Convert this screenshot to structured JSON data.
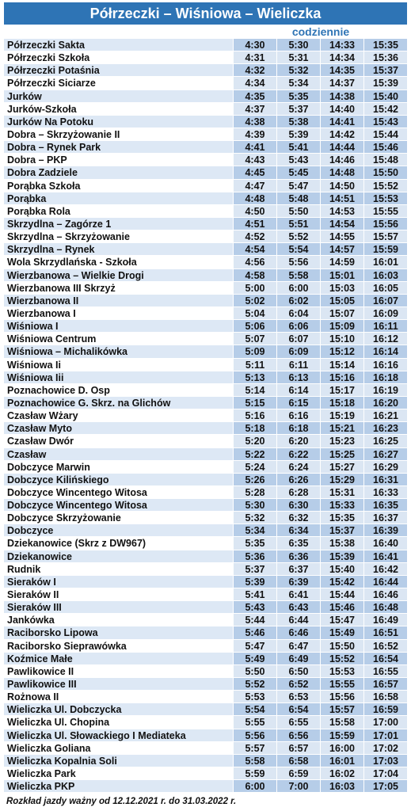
{
  "header": {
    "title": "Półrzeczki – Wiśniowa – Wieliczka",
    "subheader": "codziennie"
  },
  "table": {
    "rows": [
      [
        "Półrzeczki Sakta",
        "4:30",
        "5:30",
        "14:33",
        "15:35"
      ],
      [
        "Półrzeczki Szkoła",
        "4:31",
        "5:31",
        "14:34",
        "15:36"
      ],
      [
        "Półrzeczki Potaśnia",
        "4:32",
        "5:32",
        "14:35",
        "15:37"
      ],
      [
        "Półrzeczki Siciarze",
        "4:34",
        "5:34",
        "14:37",
        "15:39"
      ],
      [
        "Jurków",
        "4:35",
        "5:35",
        "14:38",
        "15:40"
      ],
      [
        "Jurków-Szkoła",
        "4:37",
        "5:37",
        "14:40",
        "15:42"
      ],
      [
        "Jurków Na Potoku",
        "4:38",
        "5:38",
        "14:41",
        "15:43"
      ],
      [
        "Dobra – Skrzyżowanie II",
        "4:39",
        "5:39",
        "14:42",
        "15:44"
      ],
      [
        "Dobra – Rynek Park",
        "4:41",
        "5:41",
        "14:44",
        "15:46"
      ],
      [
        "Dobra – PKP",
        "4:43",
        "5:43",
        "14:46",
        "15:48"
      ],
      [
        "Dobra Zadziele",
        "4:45",
        "5:45",
        "14:48",
        "15:50"
      ],
      [
        "Porąbka Szkoła",
        "4:47",
        "5:47",
        "14:50",
        "15:52"
      ],
      [
        "Porąbka",
        "4:48",
        "5:48",
        "14:51",
        "15:53"
      ],
      [
        "Porąbka Rola",
        "4:50",
        "5:50",
        "14:53",
        "15:55"
      ],
      [
        "Skrzydlna – Zagórze 1",
        "4:51",
        "5:51",
        "14:54",
        "15:56"
      ],
      [
        "Skrzydlna – Skrzyżowanie",
        "4:52",
        "5:52",
        "14:55",
        "15:57"
      ],
      [
        "Skrzydlna – Rynek",
        "4:54",
        "5:54",
        "14:57",
        "15:59"
      ],
      [
        "Wola Skrzydlańska - Szkoła",
        "4:56",
        "5:56",
        "14:59",
        "16:01"
      ],
      [
        "Wierzbanowa – Wielkie Drogi",
        "4:58",
        "5:58",
        "15:01",
        "16:03"
      ],
      [
        "Wierzbanowa III Skrzyż",
        "5:00",
        "6:00",
        "15:03",
        "16:05"
      ],
      [
        "Wierzbanowa II",
        "5:02",
        "6:02",
        "15:05",
        "16:07"
      ],
      [
        "Wierzbanowa I",
        "5:04",
        "6:04",
        "15:07",
        "16:09"
      ],
      [
        "Wiśniowa I",
        "5:06",
        "6:06",
        "15:09",
        "16:11"
      ],
      [
        "Wiśniowa Centrum",
        "5:07",
        "6:07",
        "15:10",
        "16:12"
      ],
      [
        "Wiśniowa – Michalikówka",
        "5:09",
        "6:09",
        "15:12",
        "16:14"
      ],
      [
        "Wiśniowa Ii",
        "5:11",
        "6:11",
        "15:14",
        "16:16"
      ],
      [
        "Wiśniowa Iii",
        "5:13",
        "6:13",
        "15:16",
        "16:18"
      ],
      [
        "Poznachowice D. Osp",
        "5:14",
        "6:14",
        "15:17",
        "16:19"
      ],
      [
        "Poznachowice G. Skrz. na Glichów",
        "5:15",
        "6:15",
        "15:18",
        "16:20"
      ],
      [
        "Czasław Wżary",
        "5:16",
        "6:16",
        "15:19",
        "16:21"
      ],
      [
        "Czasław Myto",
        "5:18",
        "6:18",
        "15:21",
        "16:23"
      ],
      [
        "Czasław Dwór",
        "5:20",
        "6:20",
        "15:23",
        "16:25"
      ],
      [
        "Czasław",
        "5:22",
        "6:22",
        "15:25",
        "16:27"
      ],
      [
        "Dobczyce Marwin",
        "5:24",
        "6:24",
        "15:27",
        "16:29"
      ],
      [
        "Dobczyce Kilińskiego",
        "5:26",
        "6:26",
        "15:29",
        "16:31"
      ],
      [
        "Dobczyce Wincentego Witosa",
        "5:28",
        "6:28",
        "15:31",
        "16:33"
      ],
      [
        "Dobczyce Wincentego Witosa",
        "5:30",
        "6:30",
        "15:33",
        "16:35"
      ],
      [
        "Dobczyce Skrzyżowanie",
        "5:32",
        "6:32",
        "15:35",
        "16:37"
      ],
      [
        "Dobczyce",
        "5:34",
        "6:34",
        "15:37",
        "16:39"
      ],
      [
        "Dziekanowice (Skrz z DW967)",
        "5:35",
        "6:35",
        "15:38",
        "16:40"
      ],
      [
        "Dziekanowice",
        "5:36",
        "6:36",
        "15:39",
        "16:41"
      ],
      [
        "Rudnik",
        "5:37",
        "6:37",
        "15:40",
        "16:42"
      ],
      [
        "Sieraków I",
        "5:39",
        "6:39",
        "15:42",
        "16:44"
      ],
      [
        "Sieraków II",
        "5:41",
        "6:41",
        "15:44",
        "16:46"
      ],
      [
        "Sieraków III",
        "5:43",
        "6:43",
        "15:46",
        "16:48"
      ],
      [
        "Jankówka",
        "5:44",
        "6:44",
        "15:47",
        "16:49"
      ],
      [
        "Raciborsko Lipowa",
        "5:46",
        "6:46",
        "15:49",
        "16:51"
      ],
      [
        "Raciborsko Sieprawówka",
        "5:47",
        "6:47",
        "15:50",
        "16:52"
      ],
      [
        "Koźmice Małe",
        "5:49",
        "6:49",
        "15:52",
        "16:54"
      ],
      [
        "Pawlikowice II",
        "5:50",
        "6:50",
        "15:53",
        "16:55"
      ],
      [
        "Pawlikowice III",
        "5:52",
        "6:52",
        "15:55",
        "16:57"
      ],
      [
        "Rożnowa II",
        "5:53",
        "6:53",
        "15:56",
        "16:58"
      ],
      [
        "Wieliczka Ul. Dobczycka",
        "5:54",
        "6:54",
        "15:57",
        "16:59"
      ],
      [
        "Wieliczka Ul. Chopina",
        "5:55",
        "6:55",
        "15:58",
        "17:00"
      ],
      [
        "Wieliczka Ul. Słowackiego I Mediateka",
        "5:56",
        "6:56",
        "15:59",
        "17:01"
      ],
      [
        "Wieliczka Goliana",
        "5:57",
        "6:57",
        "16:00",
        "17:02"
      ],
      [
        "Wieliczka Kopalnia Soli",
        "5:58",
        "6:58",
        "16:01",
        "17:03"
      ],
      [
        "Wieliczka Park",
        "5:59",
        "6:59",
        "16:02",
        "17:04"
      ],
      [
        "Wieliczka PKP",
        "6:00",
        "7:00",
        "16:03",
        "17:05"
      ]
    ]
  },
  "footer": "Rozkład jazdy ważny od 12.12.2021 r. do 31.03.2022 r."
}
